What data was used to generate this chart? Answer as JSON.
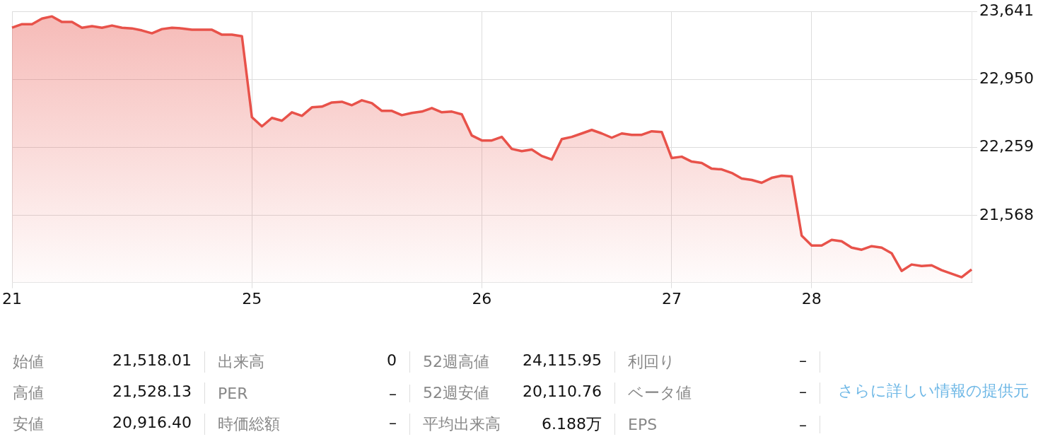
{
  "chart_data": {
    "type": "area",
    "color": "#e8524a",
    "categories": [
      "21",
      null,
      null,
      null,
      null,
      null,
      null,
      null,
      null,
      null,
      null,
      null,
      null,
      null,
      null,
      null,
      null,
      null,
      null,
      null,
      null,
      null,
      null,
      null,
      "25",
      null,
      null,
      null,
      null,
      null,
      null,
      null,
      null,
      null,
      null,
      null,
      null,
      null,
      null,
      null,
      null,
      null,
      null,
      null,
      null,
      null,
      null,
      "26",
      null,
      null,
      null,
      null,
      null,
      null,
      null,
      null,
      null,
      null,
      null,
      null,
      null,
      null,
      null,
      null,
      null,
      null,
      "27",
      null,
      null,
      null,
      null,
      null,
      null,
      null,
      null,
      null,
      null,
      null,
      null,
      null,
      "28",
      null,
      null,
      null,
      null,
      null,
      null,
      null,
      null,
      null,
      null,
      null,
      null,
      null,
      null,
      null,
      null
    ],
    "values": [
      23476,
      23512,
      23512,
      23569,
      23591,
      23534,
      23534,
      23476,
      23491,
      23476,
      23498,
      23476,
      23469,
      23448,
      23419,
      23462,
      23476,
      23469,
      23455,
      23455,
      23455,
      23405,
      23405,
      23390,
      22567,
      22474,
      22560,
      22531,
      22617,
      22581,
      22667,
      22674,
      22717,
      22724,
      22689,
      22739,
      22710,
      22631,
      22631,
      22588,
      22610,
      22624,
      22660,
      22617,
      22624,
      22596,
      22381,
      22331,
      22331,
      22367,
      22245,
      22223,
      22238,
      22173,
      22137,
      22345,
      22367,
      22402,
      22438,
      22402,
      22359,
      22402,
      22388,
      22388,
      22424,
      22417,
      22152,
      22166,
      22116,
      22102,
      22044,
      22037,
      22001,
      21944,
      21930,
      21901,
      21951,
      21973,
      21966,
      21364,
      21264,
      21264,
      21321,
      21307,
      21242,
      21221,
      21257,
      21242,
      21185,
      21006,
      21071,
      21056,
      21063,
      21013,
      20977,
      20942,
      21020
    ],
    "ylim": [
      20888,
      23641
    ],
    "yticks": [
      {
        "value": 21568,
        "label": "21,568"
      },
      {
        "value": 22259,
        "label": "22,259"
      },
      {
        "value": 22950,
        "label": "22,950"
      },
      {
        "value": 23641,
        "label": "23,641"
      }
    ],
    "grid": true,
    "legend": false,
    "marker": "none",
    "line_style": "solid",
    "annotations": [
      "始値",
      "21,518.01",
      "出来高",
      "0",
      "52週高値",
      "24,115.95",
      "利回り",
      "–",
      "高値",
      "21,528.13",
      "PER",
      "–",
      "52週安値",
      "20,110.76",
      "ベータ値",
      "–",
      "安値",
      "20,916.40",
      "時価総額",
      "–",
      "平均出来高",
      "6.188万",
      "EPS",
      "–",
      "さらに詳しい情報の提供元"
    ]
  }
}
